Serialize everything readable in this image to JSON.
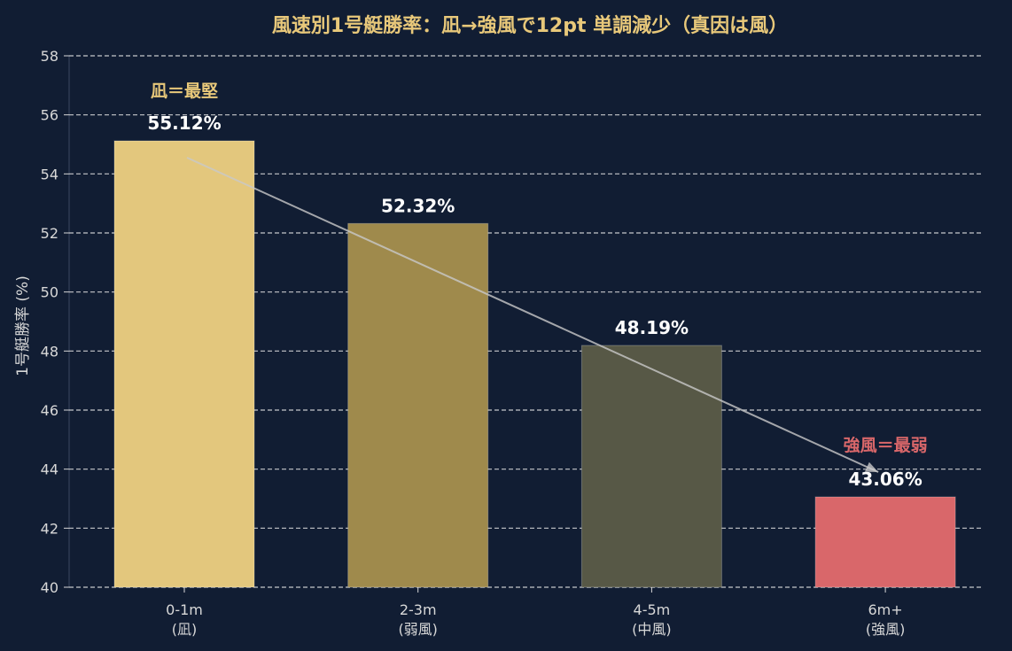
{
  "colors": {
    "background": "#111d33",
    "grid": "#e6e6e6",
    "title": "#e8c87a",
    "text": "#d8d8d8",
    "value_label": "#ffffff",
    "trend": "#c9c9c9",
    "annotation_calm": "#e8c87a",
    "annotation_strong": "#d9676a"
  },
  "chart_data": {
    "type": "bar",
    "title": "風速別1号艇勝率：凪→強風で12pt 単調減少（真因は風）",
    "ylabel": "1号艇勝率 (%)",
    "xlabel": "",
    "ylim": [
      40,
      58
    ],
    "yticks": [
      "40",
      "42",
      "44",
      "46",
      "48",
      "50",
      "52",
      "54",
      "56",
      "58"
    ],
    "grid": true,
    "grid_style": "dashed",
    "categories": [
      {
        "line1": "0-1m",
        "line2": "(凪)"
      },
      {
        "line1": "2-3m",
        "line2": "(弱風)"
      },
      {
        "line1": "4-5m",
        "line2": "(中風)"
      },
      {
        "line1": "6m+",
        "line2": "(強風)"
      }
    ],
    "values": [
      55.12,
      52.32,
      48.19,
      43.06
    ],
    "value_labels": [
      "55.12%",
      "52.32%",
      "48.19%",
      "43.06%"
    ],
    "bar_colors": [
      "#e3c77d",
      "#9f8a4c",
      "#575846",
      "#d9676a"
    ],
    "trend": {
      "from": [
        0,
        54.55
      ],
      "to": [
        3,
        43.9
      ]
    },
    "annotations": [
      {
        "text": "凪＝最堅",
        "category_index": 0,
        "y": 56.8,
        "color": "#e8c87a"
      },
      {
        "text": "強風＝最弱",
        "category_index": 3,
        "y": 44.8,
        "color": "#d9676a"
      }
    ]
  }
}
